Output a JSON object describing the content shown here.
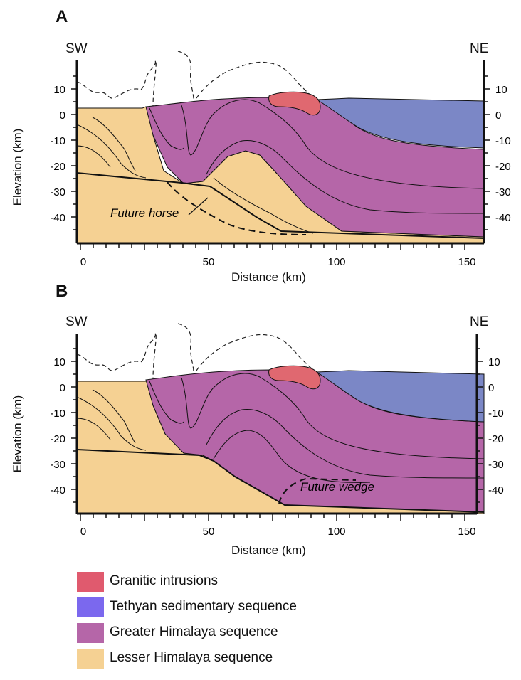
{
  "panels": [
    {
      "label": "A",
      "left_dir": "SW",
      "right_dir": "NE",
      "ylabel": "Elevation (km)",
      "xlabel": "Distance (km)",
      "annotation": "Future horse",
      "y_ticks": [
        "10",
        "0",
        "-10",
        "-20",
        "-30",
        "-40"
      ],
      "x_ticks": [
        "0",
        "50",
        "100",
        "150"
      ]
    },
    {
      "label": "B",
      "left_dir": "SW",
      "right_dir": "NE",
      "ylabel": "Elevation (km)",
      "xlabel": "Distance (km)",
      "annotation": "Future wedge",
      "y_ticks": [
        "10",
        "0",
        "-10",
        "-20",
        "-30",
        "-40"
      ],
      "x_ticks": [
        "0",
        "50",
        "100",
        "150"
      ]
    }
  ],
  "legend": [
    {
      "label": "Granitic intrusions",
      "color": "#e05a6e"
    },
    {
      "label": "Tethyan sedimentary sequence",
      "color": "#7b68ee"
    },
    {
      "label": "Greater Himalaya sequence",
      "color": "#b566a8"
    },
    {
      "label": "Lesser Himalaya sequence",
      "color": "#f5d193"
    }
  ],
  "colors": {
    "lesser": "#f5d193",
    "greater": "#b566a8",
    "tethyan": "#7b87c6",
    "granite": "#e06870"
  }
}
